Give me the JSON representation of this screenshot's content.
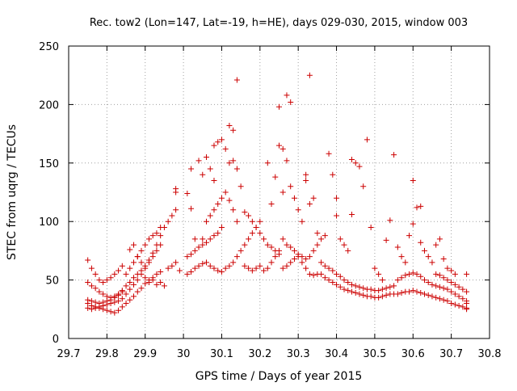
{
  "chart_data": {
    "type": "scatter",
    "title": "Rec. tow2 (Lon=147, Lat=-19, h=HE), days 029-030, 2015, window 003",
    "xlabel": "GPS time / Days of year 2015",
    "ylabel": "STEC from uqrg / TECUs",
    "xlim": [
      29.7,
      30.8
    ],
    "ylim": [
      0,
      250
    ],
    "xticks": [
      "29.7",
      "29.8",
      "29.9",
      "30",
      "30.1",
      "30.2",
      "30.3",
      "30.4",
      "30.5",
      "30.6",
      "30.7",
      "30.8"
    ],
    "yticks": [
      "0",
      "50",
      "100",
      "150",
      "200",
      "250"
    ],
    "grid": true,
    "marker": "+",
    "color": "#cc0000",
    "points": [
      [
        29.75,
        30
      ],
      [
        29.76,
        28
      ],
      [
        29.77,
        27
      ],
      [
        29.78,
        26
      ],
      [
        29.79,
        25
      ],
      [
        29.8,
        24
      ],
      [
        29.81,
        23
      ],
      [
        29.82,
        22
      ],
      [
        29.83,
        24
      ],
      [
        29.84,
        27
      ],
      [
        29.75,
        26
      ],
      [
        29.76,
        25
      ],
      [
        29.77,
        26
      ],
      [
        29.78,
        27
      ],
      [
        29.79,
        28
      ],
      [
        29.8,
        29
      ],
      [
        29.81,
        30
      ],
      [
        29.82,
        31
      ],
      [
        29.83,
        32
      ],
      [
        29.84,
        34
      ],
      [
        29.75,
        33
      ],
      [
        29.76,
        32
      ],
      [
        29.77,
        31
      ],
      [
        29.78,
        30
      ],
      [
        29.79,
        31
      ],
      [
        29.8,
        32
      ],
      [
        29.81,
        33
      ],
      [
        29.82,
        35
      ],
      [
        29.83,
        37
      ],
      [
        29.84,
        40
      ],
      [
        29.75,
        48
      ],
      [
        29.76,
        45
      ],
      [
        29.77,
        43
      ],
      [
        29.78,
        40
      ],
      [
        29.79,
        38
      ],
      [
        29.8,
        36
      ],
      [
        29.81,
        35
      ],
      [
        29.82,
        36
      ],
      [
        29.83,
        38
      ],
      [
        29.84,
        41
      ],
      [
        29.75,
        67
      ],
      [
        29.76,
        60
      ],
      [
        29.77,
        55
      ],
      [
        29.78,
        50
      ],
      [
        29.79,
        48
      ],
      [
        29.8,
        50
      ],
      [
        29.81,
        52
      ],
      [
        29.82,
        55
      ],
      [
        29.83,
        58
      ],
      [
        29.84,
        62
      ],
      [
        29.85,
        45
      ],
      [
        29.86,
        48
      ],
      [
        29.87,
        52
      ],
      [
        29.88,
        55
      ],
      [
        29.89,
        58
      ],
      [
        29.9,
        62
      ],
      [
        29.91,
        65
      ],
      [
        29.92,
        70
      ],
      [
        29.93,
        75
      ],
      [
        29.94,
        80
      ],
      [
        29.85,
        30
      ],
      [
        29.86,
        33
      ],
      [
        29.87,
        36
      ],
      [
        29.88,
        40
      ],
      [
        29.89,
        43
      ],
      [
        29.9,
        47
      ],
      [
        29.91,
        50
      ],
      [
        29.92,
        52
      ],
      [
        29.93,
        55
      ],
      [
        29.94,
        57
      ],
      [
        29.85,
        38
      ],
      [
        29.86,
        42
      ],
      [
        29.87,
        46
      ],
      [
        29.88,
        50
      ],
      [
        29.89,
        55
      ],
      [
        29.9,
        60
      ],
      [
        29.91,
        67
      ],
      [
        29.92,
        73
      ],
      [
        29.93,
        80
      ],
      [
        29.94,
        88
      ],
      [
        29.85,
        55
      ],
      [
        29.86,
        60
      ],
      [
        29.87,
        65
      ],
      [
        29.88,
        70
      ],
      [
        29.89,
        75
      ],
      [
        29.9,
        80
      ],
      [
        29.91,
        85
      ],
      [
        29.92,
        88
      ],
      [
        29.93,
        90
      ],
      [
        29.94,
        95
      ],
      [
        29.86,
        76
      ],
      [
        29.87,
        80
      ],
      [
        29.88,
        70
      ],
      [
        29.89,
        65
      ],
      [
        29.9,
        52
      ],
      [
        29.91,
        48
      ],
      [
        29.92,
        50
      ],
      [
        29.93,
        46
      ],
      [
        29.94,
        48
      ],
      [
        29.95,
        45
      ],
      [
        29.95,
        95
      ],
      [
        29.96,
        100
      ],
      [
        29.97,
        105
      ],
      [
        29.98,
        110
      ],
      [
        29.98,
        125
      ],
      [
        29.98,
        128
      ],
      [
        29.96,
        60
      ],
      [
        29.97,
        62
      ],
      [
        29.98,
        65
      ],
      [
        29.99,
        58
      ],
      [
        30.01,
        124
      ],
      [
        30.02,
        145
      ],
      [
        30.02,
        111
      ],
      [
        30.03,
        85
      ],
      [
        30.04,
        152
      ],
      [
        30.05,
        140
      ],
      [
        30.06,
        155
      ],
      [
        30.07,
        145
      ],
      [
        30.08,
        165
      ],
      [
        30.08,
        135
      ],
      [
        30.09,
        168
      ],
      [
        30.1,
        170
      ],
      [
        30.11,
        162
      ],
      [
        30.12,
        150
      ],
      [
        30.12,
        182
      ],
      [
        30.13,
        178
      ],
      [
        30.13,
        152
      ],
      [
        30.14,
        221
      ],
      [
        30.14,
        145
      ],
      [
        30.15,
        130
      ],
      [
        30.01,
        55
      ],
      [
        30.02,
        57
      ],
      [
        30.03,
        60
      ],
      [
        30.04,
        62
      ],
      [
        30.05,
        64
      ],
      [
        30.06,
        65
      ],
      [
        30.07,
        62
      ],
      [
        30.08,
        60
      ],
      [
        30.09,
        58
      ],
      [
        30.1,
        57
      ],
      [
        30.01,
        70
      ],
      [
        30.02,
        72
      ],
      [
        30.03,
        75
      ],
      [
        30.04,
        78
      ],
      [
        30.05,
        80
      ],
      [
        30.06,
        82
      ],
      [
        30.07,
        85
      ],
      [
        30.08,
        88
      ],
      [
        30.09,
        90
      ],
      [
        30.1,
        95
      ],
      [
        30.05,
        85
      ],
      [
        30.06,
        100
      ],
      [
        30.07,
        105
      ],
      [
        30.08,
        110
      ],
      [
        30.09,
        115
      ],
      [
        30.1,
        120
      ],
      [
        30.11,
        125
      ],
      [
        30.12,
        118
      ],
      [
        30.13,
        110
      ],
      [
        30.14,
        100
      ],
      [
        30.11,
        60
      ],
      [
        30.12,
        62
      ],
      [
        30.13,
        65
      ],
      [
        30.14,
        70
      ],
      [
        30.15,
        75
      ],
      [
        30.16,
        80
      ],
      [
        30.17,
        85
      ],
      [
        30.18,
        90
      ],
      [
        30.19,
        95
      ],
      [
        30.2,
        100
      ],
      [
        30.16,
        62
      ],
      [
        30.17,
        60
      ],
      [
        30.18,
        58
      ],
      [
        30.19,
        60
      ],
      [
        30.2,
        62
      ],
      [
        30.21,
        58
      ],
      [
        30.22,
        60
      ],
      [
        30.23,
        65
      ],
      [
        30.24,
        70
      ],
      [
        30.25,
        75
      ],
      [
        30.16,
        108
      ],
      [
        30.17,
        105
      ],
      [
        30.18,
        100
      ],
      [
        30.19,
        95
      ],
      [
        30.2,
        90
      ],
      [
        30.21,
        85
      ],
      [
        30.22,
        80
      ],
      [
        30.23,
        78
      ],
      [
        30.24,
        75
      ],
      [
        30.25,
        72
      ],
      [
        30.22,
        150
      ],
      [
        30.23,
        115
      ],
      [
        30.24,
        138
      ],
      [
        30.25,
        198
      ],
      [
        30.25,
        165
      ],
      [
        30.26,
        162
      ],
      [
        30.26,
        125
      ],
      [
        30.27,
        208
      ],
      [
        30.27,
        152
      ],
      [
        30.28,
        202
      ],
      [
        30.28,
        130
      ],
      [
        30.29,
        120
      ],
      [
        30.3,
        110
      ],
      [
        30.31,
        100
      ],
      [
        30.32,
        135
      ],
      [
        30.32,
        140
      ],
      [
        30.33,
        225
      ],
      [
        30.33,
        115
      ],
      [
        30.34,
        120
      ],
      [
        30.35,
        90
      ],
      [
        30.26,
        60
      ],
      [
        30.27,
        62
      ],
      [
        30.28,
        65
      ],
      [
        30.29,
        68
      ],
      [
        30.3,
        70
      ],
      [
        30.31,
        65
      ],
      [
        30.32,
        60
      ],
      [
        30.33,
        55
      ],
      [
        30.34,
        54
      ],
      [
        30.35,
        55
      ],
      [
        30.26,
        85
      ],
      [
        30.27,
        80
      ],
      [
        30.28,
        78
      ],
      [
        30.29,
        75
      ],
      [
        30.3,
        72
      ],
      [
        30.31,
        70
      ],
      [
        30.32,
        68
      ],
      [
        30.33,
        70
      ],
      [
        30.34,
        75
      ],
      [
        30.35,
        80
      ],
      [
        30.36,
        85
      ],
      [
        30.37,
        88
      ],
      [
        30.38,
        158
      ],
      [
        30.39,
        140
      ],
      [
        30.4,
        120
      ],
      [
        30.4,
        105
      ],
      [
        30.41,
        85
      ],
      [
        30.42,
        80
      ],
      [
        30.43,
        75
      ],
      [
        30.44,
        153
      ],
      [
        30.44,
        106
      ],
      [
        30.45,
        150
      ],
      [
        30.46,
        147
      ],
      [
        30.47,
        130
      ],
      [
        30.48,
        170
      ],
      [
        30.49,
        95
      ],
      [
        30.5,
        60
      ],
      [
        30.51,
        55
      ],
      [
        30.52,
        50
      ],
      [
        30.53,
        84
      ],
      [
        30.36,
        55
      ],
      [
        30.37,
        52
      ],
      [
        30.38,
        50
      ],
      [
        30.39,
        48
      ],
      [
        30.4,
        46
      ],
      [
        30.41,
        44
      ],
      [
        30.42,
        42
      ],
      [
        30.43,
        41
      ],
      [
        30.44,
        40
      ],
      [
        30.45,
        39
      ],
      [
        30.46,
        38
      ],
      [
        30.47,
        37
      ],
      [
        30.48,
        36
      ],
      [
        30.49,
        36
      ],
      [
        30.5,
        35
      ],
      [
        30.51,
        35
      ],
      [
        30.52,
        36
      ],
      [
        30.53,
        37
      ],
      [
        30.54,
        38
      ],
      [
        30.55,
        38
      ],
      [
        30.36,
        65
      ],
      [
        30.37,
        62
      ],
      [
        30.38,
        60
      ],
      [
        30.39,
        58
      ],
      [
        30.4,
        55
      ],
      [
        30.41,
        53
      ],
      [
        30.42,
        50
      ],
      [
        30.43,
        48
      ],
      [
        30.44,
        46
      ],
      [
        30.45,
        45
      ],
      [
        30.46,
        44
      ],
      [
        30.47,
        43
      ],
      [
        30.48,
        42
      ],
      [
        30.49,
        42
      ],
      [
        30.5,
        41
      ],
      [
        30.51,
        41
      ],
      [
        30.52,
        42
      ],
      [
        30.53,
        43
      ],
      [
        30.54,
        44
      ],
      [
        30.55,
        45
      ],
      [
        30.54,
        101
      ],
      [
        30.55,
        157
      ],
      [
        30.56,
        78
      ],
      [
        30.57,
        70
      ],
      [
        30.58,
        65
      ],
      [
        30.59,
        88
      ],
      [
        30.6,
        135
      ],
      [
        30.6,
        98
      ],
      [
        30.61,
        112
      ],
      [
        30.62,
        113
      ],
      [
        30.56,
        38
      ],
      [
        30.57,
        39
      ],
      [
        30.58,
        40
      ],
      [
        30.59,
        40
      ],
      [
        30.6,
        41
      ],
      [
        30.61,
        40
      ],
      [
        30.62,
        39
      ],
      [
        30.63,
        38
      ],
      [
        30.64,
        37
      ],
      [
        30.65,
        36
      ],
      [
        30.56,
        50
      ],
      [
        30.57,
        52
      ],
      [
        30.58,
        54
      ],
      [
        30.59,
        55
      ],
      [
        30.6,
        56
      ],
      [
        30.61,
        55
      ],
      [
        30.62,
        53
      ],
      [
        30.63,
        50
      ],
      [
        30.64,
        48
      ],
      [
        30.65,
        46
      ],
      [
        30.62,
        82
      ],
      [
        30.63,
        75
      ],
      [
        30.64,
        70
      ],
      [
        30.65,
        65
      ],
      [
        30.66,
        80
      ],
      [
        30.67,
        85
      ],
      [
        30.68,
        68
      ],
      [
        30.69,
        60
      ],
      [
        30.7,
        58
      ],
      [
        30.71,
        55
      ],
      [
        30.66,
        35
      ],
      [
        30.67,
        34
      ],
      [
        30.68,
        33
      ],
      [
        30.69,
        32
      ],
      [
        30.7,
        30
      ],
      [
        30.71,
        29
      ],
      [
        30.72,
        28
      ],
      [
        30.73,
        27
      ],
      [
        30.74,
        26
      ],
      [
        30.74,
        25
      ],
      [
        30.66,
        45
      ],
      [
        30.67,
        44
      ],
      [
        30.68,
        43
      ],
      [
        30.69,
        42
      ],
      [
        30.7,
        40
      ],
      [
        30.71,
        38
      ],
      [
        30.72,
        36
      ],
      [
        30.73,
        34
      ],
      [
        30.74,
        32
      ],
      [
        30.74,
        30
      ],
      [
        30.66,
        55
      ],
      [
        30.67,
        54
      ],
      [
        30.68,
        52
      ],
      [
        30.69,
        50
      ],
      [
        30.7,
        48
      ],
      [
        30.71,
        46
      ],
      [
        30.72,
        44
      ],
      [
        30.73,
        42
      ],
      [
        30.74,
        40
      ],
      [
        30.74,
        55
      ]
    ]
  }
}
